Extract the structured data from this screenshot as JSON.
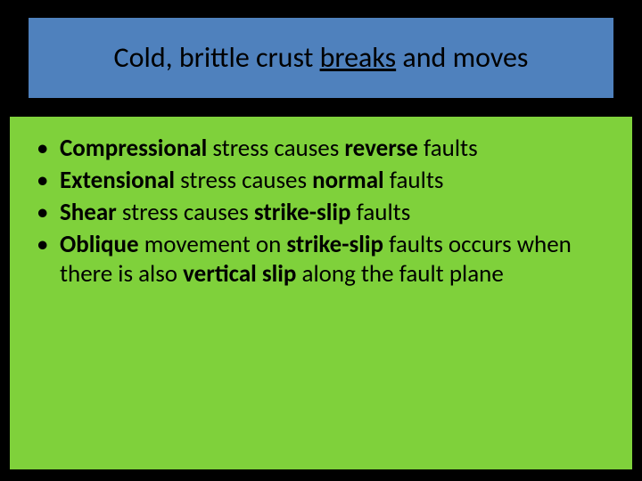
{
  "slide": {
    "background_color": "#000000",
    "title_box": {
      "fill_color": "#4f81bd",
      "border_color": "#000000",
      "border_width": 2,
      "text_plain_before": "Cold, brittle crust ",
      "text_underlined": "breaks",
      "text_plain_after": " and moves",
      "font_size": 32,
      "text_color": "#000000"
    },
    "content_box": {
      "fill_color": "#7fd13b",
      "border_color": "#000000",
      "border_width": 1,
      "font_size": 27,
      "text_color": "#000000",
      "bullets": [
        {
          "runs": [
            {
              "text": "Compressional",
              "bold": true
            },
            {
              "text": " stress causes ",
              "bold": false
            },
            {
              "text": "reverse",
              "bold": true
            },
            {
              "text": " faults",
              "bold": false
            }
          ]
        },
        {
          "runs": [
            {
              "text": "Extensional",
              "bold": true
            },
            {
              "text": " stress causes ",
              "bold": false
            },
            {
              "text": "normal",
              "bold": true
            },
            {
              "text": " faults",
              "bold": false
            }
          ]
        },
        {
          "runs": [
            {
              "text": "Shear",
              "bold": true
            },
            {
              "text": " stress causes ",
              "bold": false
            },
            {
              "text": "strike-slip",
              "bold": true
            },
            {
              "text": " faults",
              "bold": false
            }
          ]
        },
        {
          "runs": [
            {
              "text": "Oblique",
              "bold": true
            },
            {
              "text": " movement on ",
              "bold": false
            },
            {
              "text": "strike-slip",
              "bold": true
            },
            {
              "text": " faults occurs when there is also ",
              "bold": false
            },
            {
              "text": "vertical slip",
              "bold": true
            },
            {
              "text": " along the fault plane",
              "bold": false
            }
          ]
        }
      ]
    }
  }
}
